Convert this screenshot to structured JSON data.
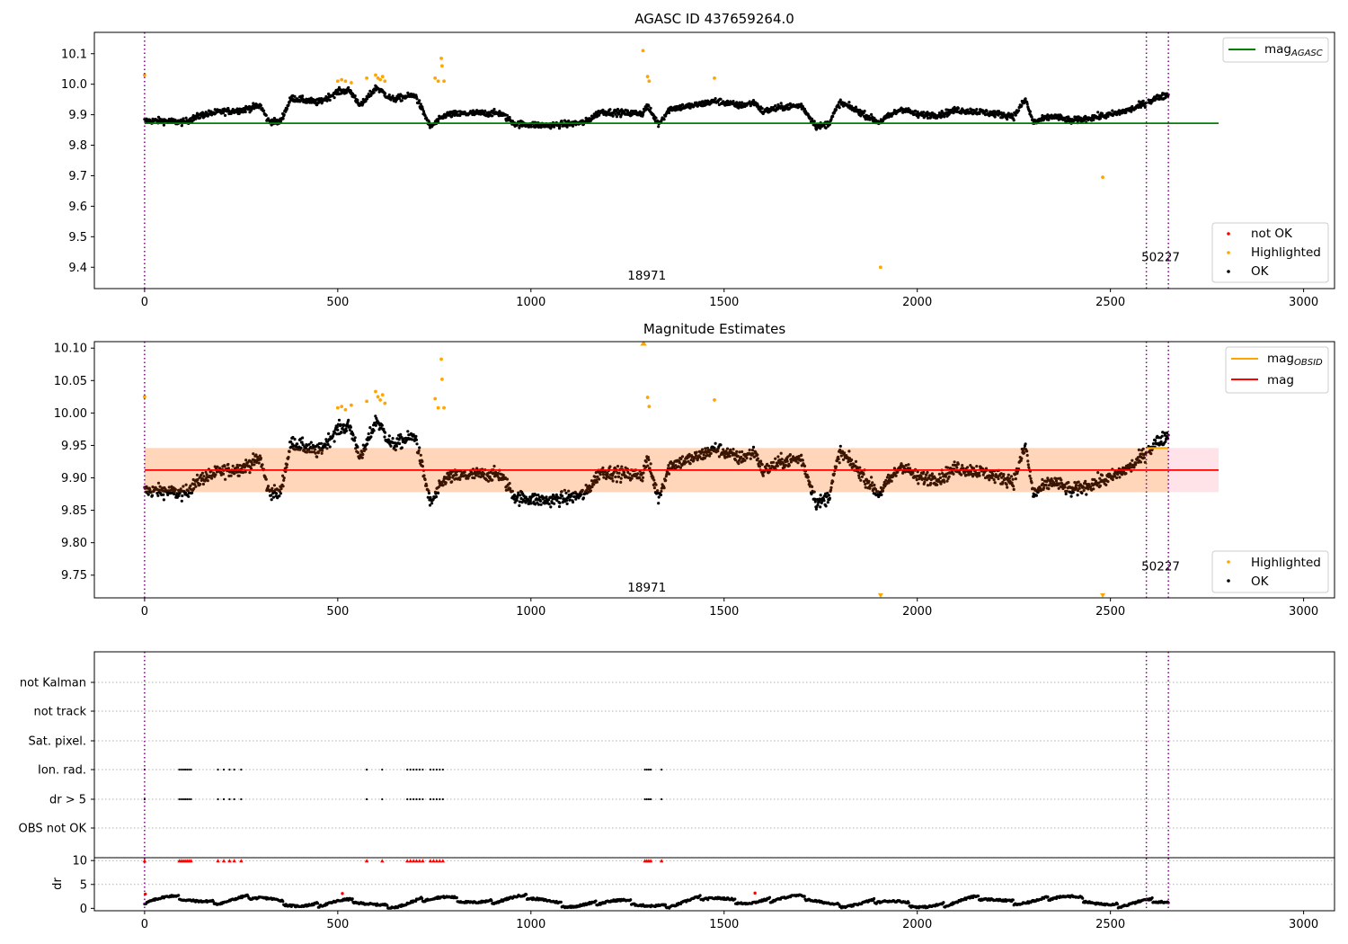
{
  "chart_data": [
    {
      "type": "scatter",
      "title": "AGASC ID 437659264.0",
      "xlim": [
        -130,
        3080
      ],
      "ylim": [
        9.33,
        10.17
      ],
      "x_ticks": [
        0,
        500,
        1000,
        1500,
        2000,
        2500,
        3000
      ],
      "y_ticks": [
        9.4,
        9.5,
        9.6,
        9.7,
        9.8,
        9.9,
        10.0,
        10.1
      ],
      "vlines_obsid_start": [
        0,
        2593,
        2650
      ],
      "obsid_labels": [
        {
          "text": "18971",
          "x": 1300,
          "y": 9.36
        },
        {
          "text": "50227",
          "x": 2630,
          "y": 9.42
        }
      ],
      "hline": {
        "name": "mag_AGASC",
        "label": "mag",
        "subscript": "AGASC",
        "y": 9.872,
        "x_range": [
          0,
          2780
        ],
        "color": "#008000"
      },
      "series": [
        {
          "name": "not OK",
          "color": "#ff0000",
          "points": []
        },
        {
          "name": "Highlighted",
          "color": "#ffa500",
          "points": [
            [
              0,
              10.03
            ],
            [
              500,
              10.01
            ],
            [
              510,
              10.015
            ],
            [
              520,
              10.01
            ],
            [
              535,
              10.005
            ],
            [
              575,
              10.02
            ],
            [
              598,
              10.03
            ],
            [
              604,
              10.02
            ],
            [
              610,
              10.015
            ],
            [
              616,
              10.025
            ],
            [
              622,
              10.01
            ],
            [
              752,
              10.02
            ],
            [
              760,
              10.01
            ],
            [
              768,
              10.085
            ],
            [
              770,
              10.06
            ],
            [
              775,
              10.01
            ],
            [
              1290,
              10.11
            ],
            [
              1302,
              10.025
            ],
            [
              1306,
              10.01
            ],
            [
              1475,
              10.02
            ],
            [
              1905,
              9.4
            ],
            [
              2480,
              9.695
            ]
          ]
        },
        {
          "name": "OK",
          "color": "#000000",
          "trend": [
            [
              0,
              9.88
            ],
            [
              50,
              9.88
            ],
            [
              100,
              9.875
            ],
            [
              150,
              9.9
            ],
            [
              200,
              9.91
            ],
            [
              250,
              9.915
            ],
            [
              300,
              9.93
            ],
            [
              320,
              9.88
            ],
            [
              350,
              9.875
            ],
            [
              380,
              9.955
            ],
            [
              450,
              9.94
            ],
            [
              500,
              9.975
            ],
            [
              530,
              9.98
            ],
            [
              560,
              9.93
            ],
            [
              600,
              9.99
            ],
            [
              640,
              9.95
            ],
            [
              700,
              9.965
            ],
            [
              740,
              9.86
            ],
            [
              780,
              9.9
            ],
            [
              850,
              9.905
            ],
            [
              920,
              9.905
            ],
            [
              960,
              9.87
            ],
            [
              1040,
              9.865
            ],
            [
              1100,
              9.87
            ],
            [
              1140,
              9.875
            ],
            [
              1180,
              9.91
            ],
            [
              1250,
              9.905
            ],
            [
              1290,
              9.905
            ],
            [
              1300,
              9.93
            ],
            [
              1330,
              9.87
            ],
            [
              1360,
              9.92
            ],
            [
              1420,
              9.93
            ],
            [
              1480,
              9.945
            ],
            [
              1540,
              9.93
            ],
            [
              1580,
              9.94
            ],
            [
              1600,
              9.91
            ],
            [
              1650,
              9.925
            ],
            [
              1700,
              9.93
            ],
            [
              1740,
              9.86
            ],
            [
              1770,
              9.87
            ],
            [
              1800,
              9.94
            ],
            [
              1850,
              9.91
            ],
            [
              1900,
              9.875
            ],
            [
              1960,
              9.92
            ],
            [
              2000,
              9.9
            ],
            [
              2060,
              9.9
            ],
            [
              2100,
              9.915
            ],
            [
              2160,
              9.91
            ],
            [
              2220,
              9.9
            ],
            [
              2250,
              9.895
            ],
            [
              2280,
              9.95
            ],
            [
              2300,
              9.875
            ],
            [
              2350,
              9.895
            ],
            [
              2400,
              9.88
            ],
            [
              2450,
              9.89
            ],
            [
              2500,
              9.9
            ],
            [
              2560,
              9.92
            ],
            [
              2593,
              9.94
            ],
            [
              2620,
              9.955
            ],
            [
              2650,
              9.965
            ]
          ]
        }
      ],
      "legend_lines": [
        "mag"
      ],
      "legend_points": [
        "not OK",
        "Highlighted",
        "OK"
      ]
    },
    {
      "type": "scatter",
      "title": "Magnitude Estimates",
      "xlim": [
        -130,
        3080
      ],
      "ylim": [
        9.715,
        10.11
      ],
      "x_ticks": [
        0,
        500,
        1000,
        1500,
        2000,
        2500,
        3000
      ],
      "y_ticks": [
        9.75,
        9.8,
        9.85,
        9.9,
        9.95,
        10.0,
        10.05,
        10.1
      ],
      "vlines_obsid_start": [
        0,
        2593,
        2650
      ],
      "obsid_labels": [
        {
          "text": "18971",
          "x": 1300,
          "y": 9.725
        },
        {
          "text": "50227",
          "x": 2630,
          "y": 9.757
        }
      ],
      "mag": {
        "label": "mag",
        "y": 9.912,
        "band": [
          9.878,
          9.946
        ],
        "x_range": [
          0,
          2780
        ],
        "color": "#ff0000"
      },
      "mag_obsid": {
        "label": "mag",
        "subscript": "OBSID",
        "color": "#ffa500",
        "segments": [
          {
            "x": [
              2593,
              2650
            ],
            "y": 9.946
          }
        ]
      },
      "upper_markers": [
        [
          1290,
          10.108
        ],
        [
          1293,
          10.108
        ]
      ],
      "lower_markers": [
        [
          1905,
          9.718
        ],
        [
          2480,
          9.718
        ]
      ],
      "series": [
        {
          "name": "Highlighted",
          "color": "#ffa500",
          "points": [
            [
              0,
              10.025
            ],
            [
              500,
              10.008
            ],
            [
              510,
              10.01
            ],
            [
              520,
              10.005
            ],
            [
              535,
              10.012
            ],
            [
              575,
              10.018
            ],
            [
              598,
              10.033
            ],
            [
              604,
              10.025
            ],
            [
              610,
              10.02
            ],
            [
              616,
              10.028
            ],
            [
              622,
              10.015
            ],
            [
              752,
              10.022
            ],
            [
              760,
              10.008
            ],
            [
              768,
              10.083
            ],
            [
              770,
              10.052
            ],
            [
              775,
              10.008
            ],
            [
              1302,
              10.024
            ],
            [
              1306,
              10.01
            ],
            [
              1475,
              10.02
            ]
          ]
        },
        {
          "name": "OK",
          "color": "#000000"
        }
      ],
      "legend_lines": [
        "mag_OBSID",
        "mag"
      ],
      "legend_points": [
        "Highlighted",
        "OK"
      ]
    },
    {
      "type": "scatter",
      "title": "",
      "xlim": [
        -130,
        3080
      ],
      "x_ticks": [
        0,
        500,
        1000,
        1500,
        2000,
        2500,
        3000
      ],
      "vlines_obsid_start": [
        0,
        2593,
        2650
      ],
      "flag_rows": [
        "not Kalman",
        "not track",
        "Sat. pixel.",
        "Ion. rad.",
        "dr > 5",
        "OBS not OK"
      ],
      "flag_points": {
        "Ion. rad.": [
          0,
          90,
          95,
          100,
          105,
          110,
          115,
          120,
          190,
          205,
          220,
          232,
          250,
          575,
          615,
          680,
          688,
          696,
          704,
          712,
          720,
          740,
          748,
          756,
          764,
          772,
          1295,
          1300,
          1305,
          1310,
          1338
        ],
        "dr > 5": [
          0,
          90,
          95,
          100,
          105,
          110,
          115,
          120,
          190,
          205,
          220,
          232,
          250,
          575,
          615,
          680,
          688,
          696,
          704,
          712,
          720,
          740,
          748,
          756,
          764,
          772,
          1295,
          1300,
          1305,
          1310,
          1338
        ]
      },
      "dr_panel": {
        "ylabel": "dr",
        "ylim": [
          -0.5,
          10.6
        ],
        "y_ticks": [
          0,
          5,
          10
        ],
        "capped_at": 10,
        "capped_points": [
          0,
          90,
          95,
          100,
          105,
          110,
          115,
          120,
          190,
          205,
          220,
          232,
          250,
          575,
          615,
          680,
          688,
          696,
          704,
          712,
          720,
          740,
          748,
          756,
          764,
          772,
          1295,
          1300,
          1305,
          1310,
          1338
        ],
        "red_points": [
          [
            2,
            3.0
          ],
          [
            512,
            3.1
          ],
          [
            1580,
            3.2
          ]
        ]
      }
    }
  ]
}
